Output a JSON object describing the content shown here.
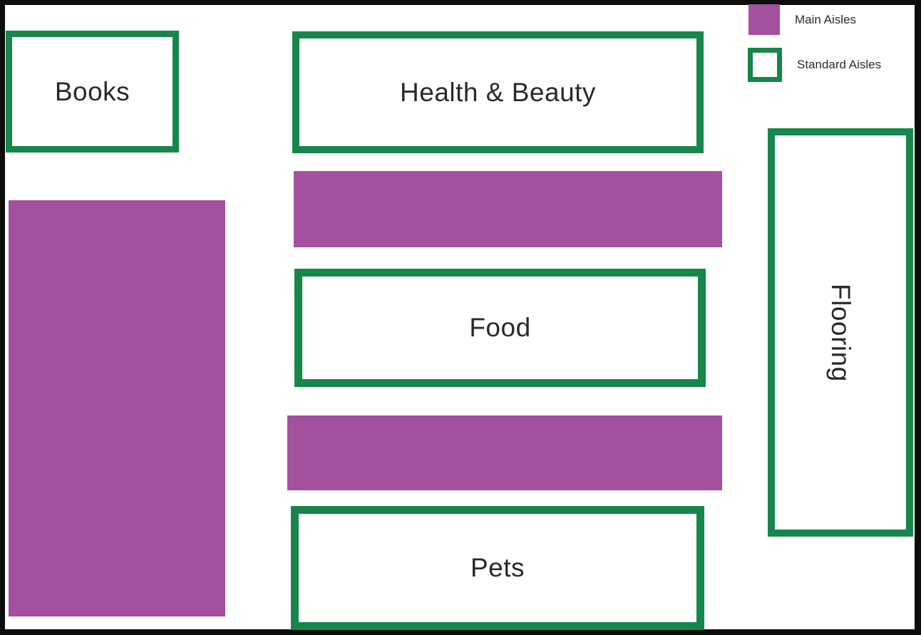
{
  "diagram": {
    "type": "store-floor-plan"
  },
  "legend": {
    "main": {
      "label": "Main Aisles"
    },
    "standard": {
      "label": "Standard Aisles"
    }
  },
  "aisles": {
    "books": {
      "label": "Books",
      "type": "standard"
    },
    "health_beauty": {
      "label": "Health & Beauty",
      "type": "standard"
    },
    "food": {
      "label": "Food",
      "type": "standard"
    },
    "pets": {
      "label": "Pets",
      "type": "standard"
    },
    "flooring": {
      "label": "Flooring",
      "type": "standard",
      "orientation": "vertical"
    },
    "main_left_block": {
      "label": "",
      "type": "main"
    },
    "main_strip_upper": {
      "label": "",
      "type": "main"
    },
    "main_strip_lower": {
      "label": "",
      "type": "main"
    }
  },
  "colors": {
    "main_aisle_fill": "#a3519e",
    "standard_aisle_border": "#16864a",
    "standard_aisle_fill": "#ffffff",
    "label_text": "#2b292a",
    "frame": "#0d0d0d",
    "floor_background": "#ffffff"
  }
}
